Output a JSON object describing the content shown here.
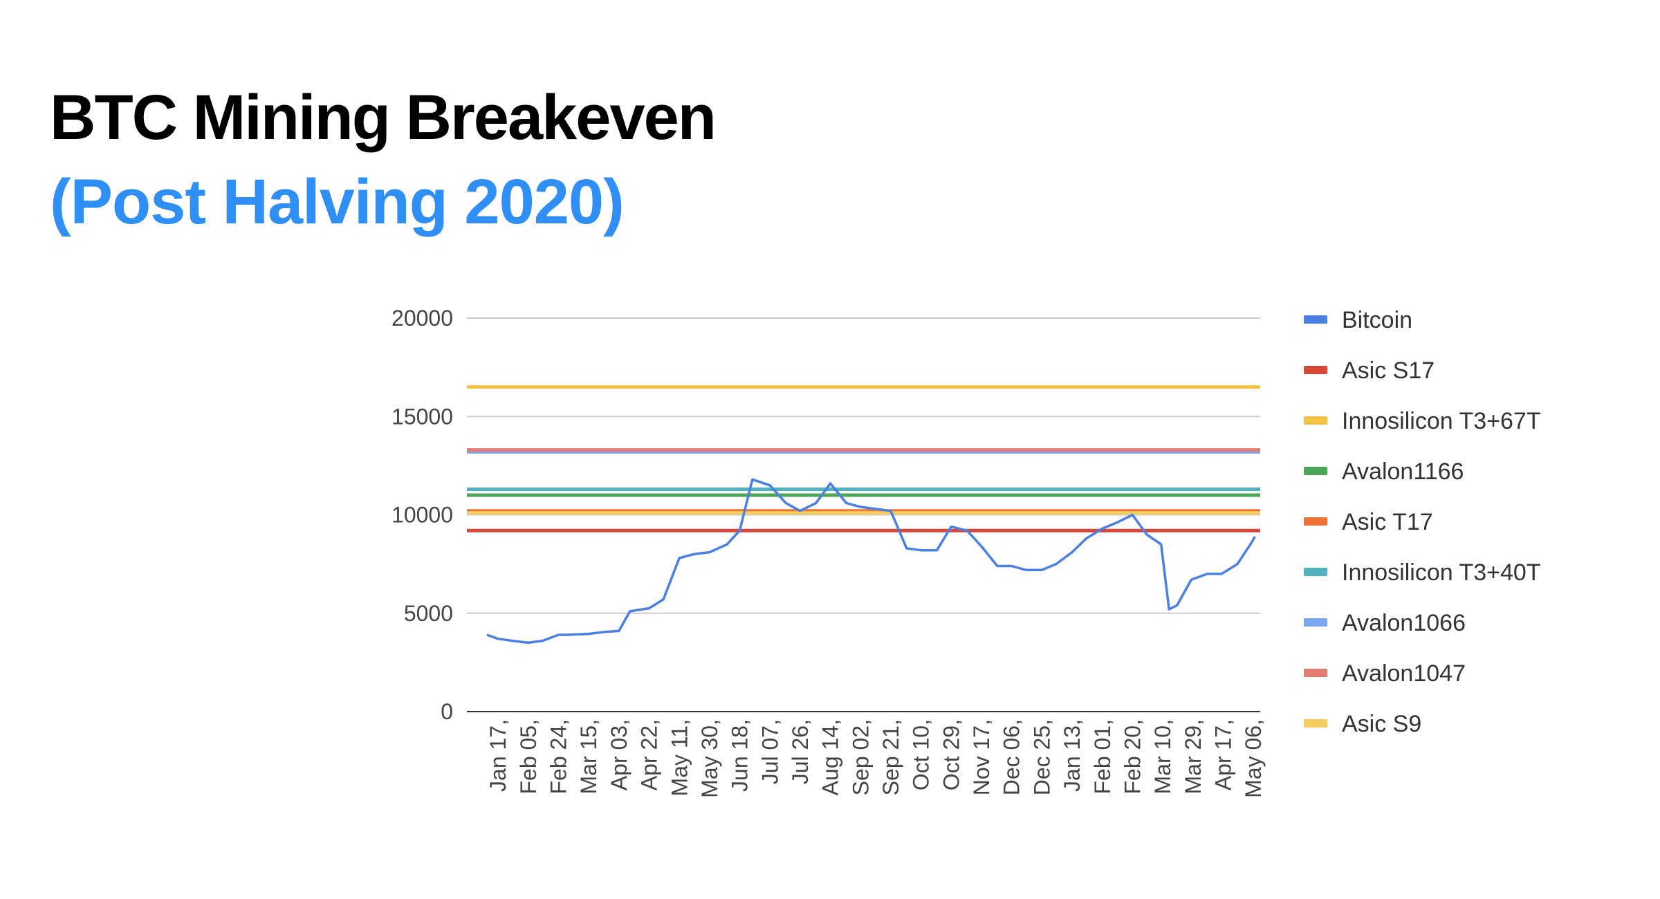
{
  "slide": {
    "title": "BTC Mining Breakeven",
    "subtitle": "(Post Halving 2020)",
    "title_color": "#000000",
    "subtitle_color": "#2f8ff5"
  },
  "chart_data": {
    "type": "line",
    "title": "",
    "xlabel": "",
    "ylabel": "",
    "ylim": [
      0,
      20000
    ],
    "yticks": [
      0,
      5000,
      10000,
      15000,
      20000
    ],
    "grid": true,
    "legend_position": "right",
    "x_tick_labels": [
      "Jan 17,",
      "Feb 05,",
      "Feb 24,",
      "Mar 15,",
      "Apr 03,",
      "Apr 22,",
      "May 11,",
      "May 30,",
      "Jun 18,",
      "Jul 07,",
      "Jul 26,",
      "Aug 14,",
      "Sep 02,",
      "Sep 21,",
      "Oct 10,",
      "Oct 29,",
      "Nov 17,",
      "Dec 06,",
      "Dec 25,",
      "Jan 13,",
      "Feb 01,",
      "Feb 20,",
      "Mar 10,",
      "Mar 29,",
      "Apr 17,",
      "May 06,"
    ],
    "series": [
      {
        "name": "Bitcoin",
        "color": "#4a7fe3",
        "type": "line",
        "x": [
          "Jan 10",
          "Jan 17",
          "Jan 26",
          "Feb 05",
          "Feb 14",
          "Feb 24",
          "Mar 01",
          "Mar 15",
          "Mar 25",
          "Apr 03",
          "Apr 10",
          "Apr 22",
          "May 01",
          "May 11",
          "May 20",
          "May 30",
          "Jun 10",
          "Jun 18",
          "Jun 26",
          "Jul 07",
          "Jul 17",
          "Jul 26",
          "Aug 05",
          "Aug 14",
          "Aug 24",
          "Sep 02",
          "Sep 12",
          "Sep 21",
          "Oct 01",
          "Oct 10",
          "Oct 20",
          "Oct 29",
          "Nov 08",
          "Nov 17",
          "Nov 27",
          "Dec 06",
          "Dec 15",
          "Dec 25",
          "Jan 03",
          "Jan 13",
          "Jan 22",
          "Feb 01",
          "Feb 10",
          "Feb 20",
          "Mar 01",
          "Mar 10",
          "Mar 15",
          "Mar 20",
          "Mar 29",
          "Apr 08",
          "Apr 17",
          "Apr 27",
          "May 06",
          "May 08"
        ],
        "values": [
          3900,
          3700,
          3600,
          3500,
          3600,
          3900,
          3900,
          3950,
          4050,
          4100,
          5100,
          5250,
          5700,
          7800,
          8000,
          8100,
          8500,
          9200,
          11800,
          11500,
          10600,
          10200,
          10600,
          11600,
          10600,
          10400,
          10300,
          10200,
          8300,
          8200,
          8200,
          9400,
          9200,
          8400,
          7400,
          7400,
          7200,
          7200,
          7500,
          8100,
          8800,
          9300,
          9600,
          10000,
          9000,
          8500,
          5200,
          5400,
          6700,
          7000,
          7000,
          7500,
          8600,
          8900
        ]
      },
      {
        "name": "Asic S17",
        "color": "#d9463a",
        "type": "horizontal",
        "value": 9200
      },
      {
        "name": "Innosilicon T3+67T",
        "color": "#f3c244",
        "type": "horizontal",
        "value": 16500
      },
      {
        "name": "Avalon1166",
        "color": "#4ca658",
        "type": "horizontal",
        "value": 11000
      },
      {
        "name": "Asic T17",
        "color": "#ee7236",
        "type": "horizontal",
        "value": 10200
      },
      {
        "name": "Innosilicon T3+40T",
        "color": "#4fb2c1",
        "type": "horizontal",
        "value": 11300
      },
      {
        "name": "Avalon1066",
        "color": "#7ba7ef",
        "type": "horizontal",
        "value": 13200
      },
      {
        "name": "Avalon1047",
        "color": "#e37a73",
        "type": "horizontal",
        "value": 13300
      },
      {
        "name": "Asic S9",
        "color": "#f5cc5e",
        "type": "horizontal",
        "value": 10100
      }
    ]
  }
}
